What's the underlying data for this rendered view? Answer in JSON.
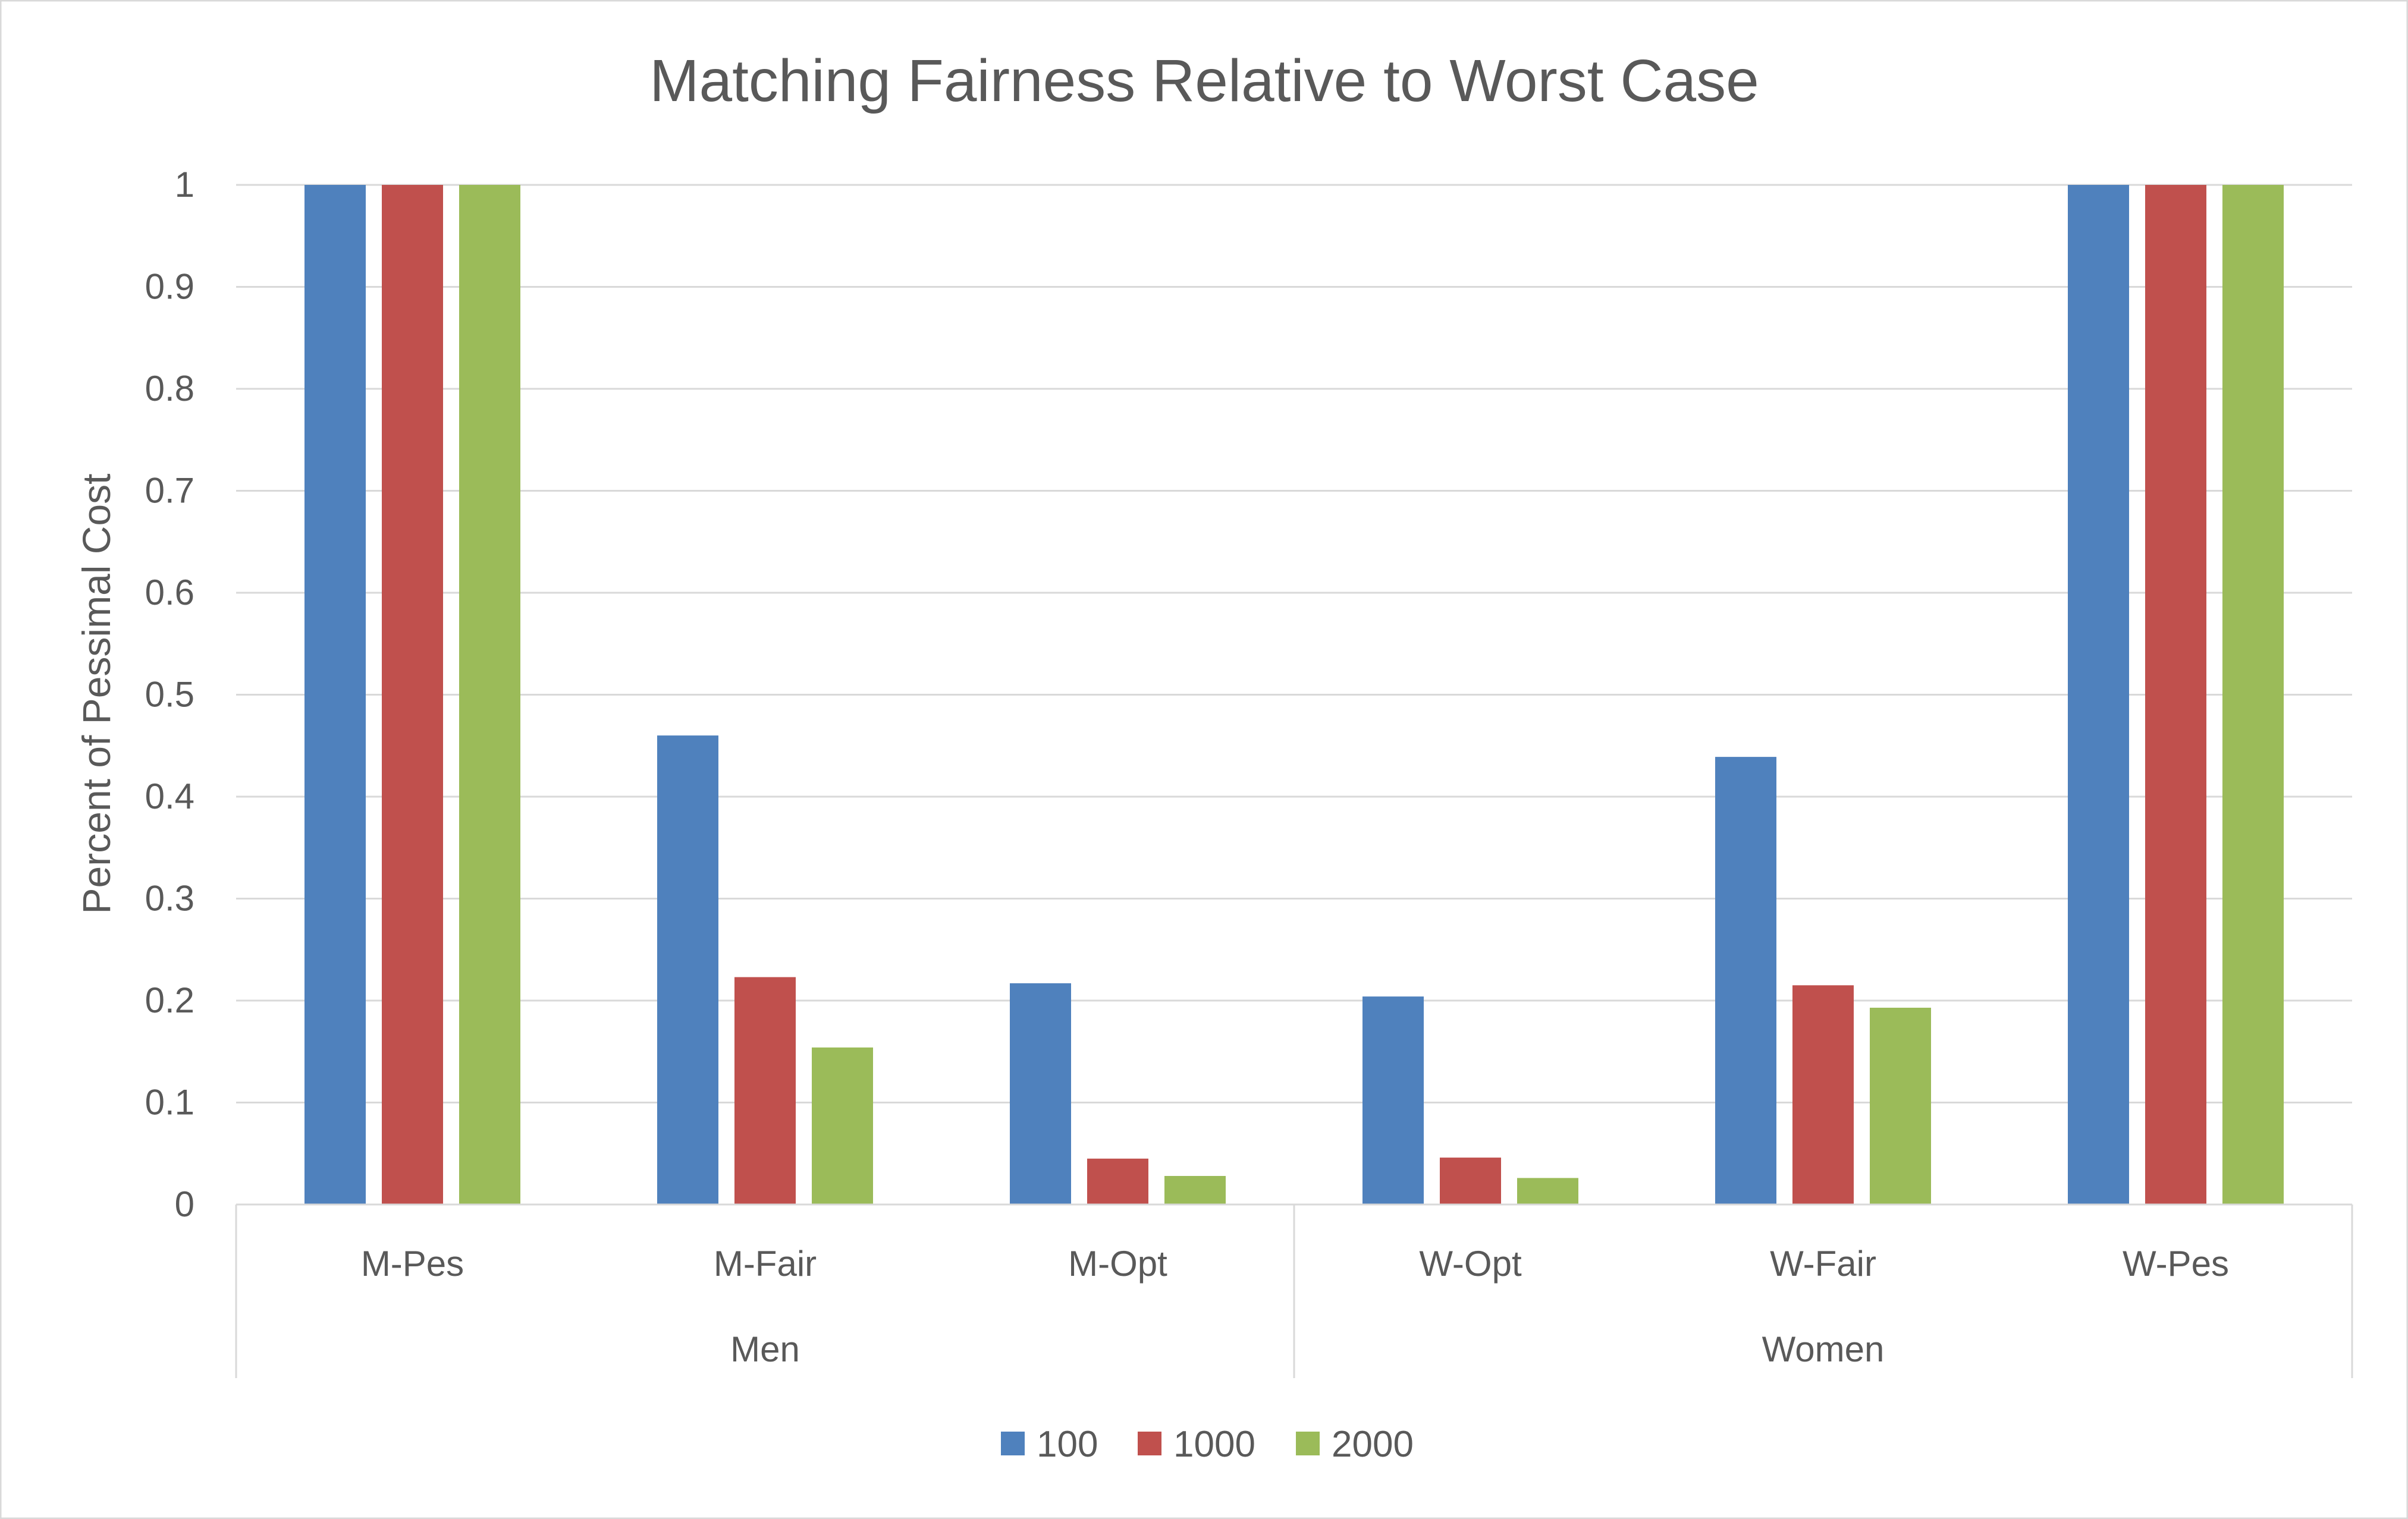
{
  "chart_data": {
    "type": "bar",
    "title": "Matching Fairness Relative to Worst Case",
    "xlabel": "",
    "ylabel": "Percent of Pessimal Cost",
    "ylim": [
      0,
      1
    ],
    "yticks": [
      "0",
      "0.1",
      "0.2",
      "0.3",
      "0.4",
      "0.5",
      "0.6",
      "0.7",
      "0.8",
      "0.9",
      "1"
    ],
    "grid": true,
    "legend_position": "bottom",
    "categories": [
      "M-Pes",
      "M-Fair",
      "M-Opt",
      "W-Opt",
      "W-Fair",
      "W-Pes"
    ],
    "groups": [
      {
        "label": "Men",
        "categories": [
          "M-Pes",
          "M-Fair",
          "M-Opt"
        ]
      },
      {
        "label": "Women",
        "categories": [
          "W-Opt",
          "W-Fair",
          "W-Pes"
        ]
      }
    ],
    "series": [
      {
        "name": "100",
        "color": "#4F81BD",
        "values": [
          1.0,
          0.46,
          0.217,
          0.204,
          0.439,
          1.0
        ]
      },
      {
        "name": "1000",
        "color": "#C0504D",
        "values": [
          1.0,
          0.223,
          0.045,
          0.046,
          0.215,
          1.0
        ]
      },
      {
        "name": "2000",
        "color": "#9BBB59",
        "values": [
          1.0,
          0.154,
          0.028,
          0.026,
          0.193,
          1.0
        ]
      }
    ]
  }
}
